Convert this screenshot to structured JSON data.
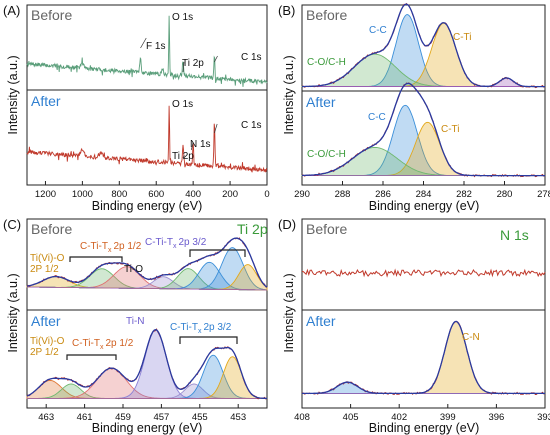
{
  "chart_data": [
    {
      "type": "line",
      "panel_label": "(A)",
      "xlabel": "Binding energy (eV)",
      "ylabel": "Intensity (a.u.)",
      "xlim": [
        1300,
        0
      ],
      "xticks": [
        1200,
        1000,
        800,
        600,
        400,
        200,
        0
      ],
      "series": [
        {
          "name": "Before",
          "color": "#5a9e7a",
          "peaks": [
            {
              "x": 530,
              "label": "O 1s"
            },
            {
              "x": 685,
              "label": "F 1s"
            },
            {
              "x": 455,
              "label": "Ti 2p"
            },
            {
              "x": 285,
              "label": "C 1s"
            }
          ]
        },
        {
          "name": "After",
          "color": "#c0392b",
          "peaks": [
            {
              "x": 530,
              "label": "O 1s"
            },
            {
              "x": 455,
              "label": "Ti 2p"
            },
            {
              "x": 400,
              "label": "N 1s"
            },
            {
              "x": 285,
              "label": "C 1s"
            }
          ]
        }
      ]
    },
    {
      "type": "line",
      "panel_label": "(B)",
      "xlabel": "Binding energy (eV)",
      "ylabel": "Intensity (a.u.)",
      "xlim": [
        290,
        278
      ],
      "xticks": [
        290,
        288,
        286,
        284,
        282,
        280,
        278
      ],
      "series": [
        {
          "name": "Before",
          "components": [
            {
              "label": "C-C",
              "center": 284.8,
              "amp": 1.0,
              "fwhm": 1.3,
              "color": "#3b8fd9"
            },
            {
              "label": "C-Ti",
              "center": 283.0,
              "amp": 0.88,
              "fwhm": 1.4,
              "color": "#e3a81a"
            },
            {
              "label": "C-O/C-H",
              "center": 286.4,
              "amp": 0.45,
              "fwhm": 2.4,
              "color": "#6fb86f"
            },
            {
              "label": "",
              "center": 279.9,
              "amp": 0.12,
              "fwhm": 0.8,
              "color": "#9b59b6"
            }
          ]
        },
        {
          "name": "After",
          "components": [
            {
              "label": "C-C",
              "center": 284.9,
              "amp": 0.95,
              "fwhm": 1.4,
              "color": "#3b8fd9"
            },
            {
              "label": "C-Ti",
              "center": 283.8,
              "amp": 0.72,
              "fwhm": 1.4,
              "color": "#e3a81a"
            },
            {
              "label": "C-O/C-H",
              "center": 286.4,
              "amp": 0.38,
              "fwhm": 2.6,
              "color": "#6fb86f"
            }
          ]
        }
      ]
    },
    {
      "type": "line",
      "panel_label": "(C)",
      "xlabel": "Binding energy (eV)",
      "ylabel": "Intensity (a.u.)",
      "xlim": [
        464,
        451.5
      ],
      "xticks": [
        463,
        461,
        459,
        457,
        455,
        453
      ],
      "corner_label": "Ti 2p",
      "series": [
        {
          "name": "Before",
          "annotations": [
            "Ti(Vi)-O",
            "2P 1/2",
            "C-Ti-T",
            "x",
            "2p 1/2",
            "Ti-O",
            "C-Ti-T",
            "x",
            "2p 3/2"
          ],
          "components": [
            {
              "center": 462.5,
              "amp": 0.18,
              "fwhm": 1.6,
              "color": "#e3a81a"
            },
            {
              "center": 460.1,
              "amp": 0.32,
              "fwhm": 1.5,
              "color": "#6fb86f"
            },
            {
              "center": 458.8,
              "amp": 0.36,
              "fwhm": 1.6,
              "color": "#e07070"
            },
            {
              "center": 456.9,
              "amp": 0.2,
              "fwhm": 1.2,
              "color": "#9b8fd0"
            },
            {
              "center": 455.6,
              "amp": 0.34,
              "fwhm": 1.3,
              "color": "#6fb86f"
            },
            {
              "center": 454.5,
              "amp": 0.45,
              "fwhm": 1.3,
              "color": "#3b8fd9"
            },
            {
              "center": 453.3,
              "amp": 0.7,
              "fwhm": 1.3,
              "color": "#3b8fd9"
            },
            {
              "center": 452.5,
              "amp": 0.42,
              "fwhm": 1.1,
              "color": "#e3a81a"
            }
          ]
        },
        {
          "name": "After",
          "annotations": [
            "Ti(Vi)-O",
            "2P 1/2",
            "C-Ti-T",
            "x",
            "2p 1/2",
            "Ti-N",
            "C-Ti-T",
            "x",
            "2p 3/2"
          ],
          "components": [
            {
              "center": 462.8,
              "amp": 0.25,
              "fwhm": 1.4,
              "color": "#e07a3a"
            },
            {
              "center": 461.7,
              "amp": 0.2,
              "fwhm": 1.2,
              "color": "#6fb86f"
            },
            {
              "center": 459.6,
              "amp": 0.42,
              "fwhm": 1.8,
              "color": "#e07070"
            },
            {
              "center": 457.3,
              "amp": 0.95,
              "fwhm": 1.3,
              "color": "#8a7fd6"
            },
            {
              "center": 455.3,
              "amp": 0.2,
              "fwhm": 1.1,
              "color": "#9b8fd0"
            },
            {
              "center": 454.3,
              "amp": 0.6,
              "fwhm": 1.2,
              "color": "#3b8fd9"
            },
            {
              "center": 453.3,
              "amp": 0.58,
              "fwhm": 1.1,
              "color": "#e3a81a"
            }
          ]
        }
      ]
    },
    {
      "type": "line",
      "panel_label": "(D)",
      "xlabel": "Binding energy (eV)",
      "ylabel": "Intensity (a.u.)",
      "xlim": [
        408,
        393
      ],
      "xticks": [
        408,
        405,
        402,
        399,
        396,
        393
      ],
      "corner_label": "N 1s",
      "series": [
        {
          "name": "Before",
          "color": "#c0392b",
          "components": []
        },
        {
          "name": "After",
          "components": [
            {
              "label": "C-N",
              "center": 398.5,
              "amp": 0.9,
              "fwhm": 1.6,
              "color": "#e3a81a"
            },
            {
              "label": "",
              "center": 405.2,
              "amp": 0.14,
              "fwhm": 1.5,
              "color": "#3b8fd9"
            }
          ]
        }
      ]
    }
  ]
}
